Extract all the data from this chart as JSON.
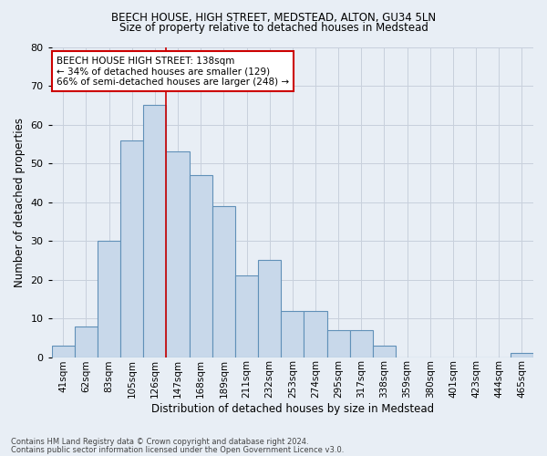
{
  "title1": "BEECH HOUSE, HIGH STREET, MEDSTEAD, ALTON, GU34 5LN",
  "title2": "Size of property relative to detached houses in Medstead",
  "xlabel": "Distribution of detached houses by size in Medstead",
  "ylabel": "Number of detached properties",
  "categories": [
    "41sqm",
    "62sqm",
    "83sqm",
    "105sqm",
    "126sqm",
    "147sqm",
    "168sqm",
    "189sqm",
    "211sqm",
    "232sqm",
    "253sqm",
    "274sqm",
    "295sqm",
    "317sqm",
    "338sqm",
    "359sqm",
    "380sqm",
    "401sqm",
    "423sqm",
    "444sqm",
    "465sqm"
  ],
  "values": [
    3,
    8,
    30,
    56,
    65,
    53,
    47,
    39,
    21,
    25,
    12,
    12,
    7,
    7,
    3,
    0,
    0,
    0,
    0,
    0,
    1
  ],
  "bar_color": "#c8d8ea",
  "bar_edge_color": "#6090b8",
  "marker_label": "BEECH HOUSE HIGH STREET: 138sqm",
  "annotation_line1": "← 34% of detached houses are smaller (129)",
  "annotation_line2": "66% of semi-detached houses are larger (248) →",
  "marker_color": "#cc0000",
  "ylim": [
    0,
    80
  ],
  "yticks": [
    0,
    10,
    20,
    30,
    40,
    50,
    60,
    70,
    80
  ],
  "footer1": "Contains HM Land Registry data © Crown copyright and database right 2024.",
  "footer2": "Contains public sector information licensed under the Open Government Licence v3.0.",
  "background_color": "#e8eef5",
  "plot_background": "#e8eef5",
  "grid_color": "#c8d0dc"
}
